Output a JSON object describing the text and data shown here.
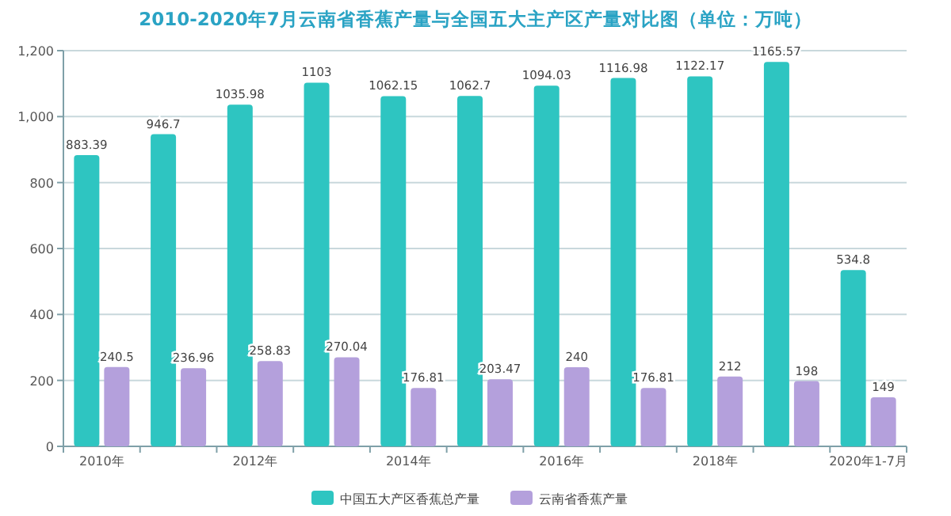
{
  "chart_data": {
    "type": "bar",
    "title": "2010-2020年7月云南省香蕉产量与全国五大主产区产量对比图（单位：万吨）",
    "categories": [
      "2010年",
      null,
      "2012年",
      null,
      "2014年",
      null,
      "2016年",
      null,
      "2018年",
      null,
      "2020年1-7月"
    ],
    "series": [
      {
        "name": "中国五大产区香蕉总产量",
        "color": "#2ec5c1",
        "values": [
          883.39,
          946.7,
          1035.98,
          1103,
          1062.15,
          1062.7,
          1094.03,
          1116.98,
          1122.17,
          1165.57,
          534.8
        ]
      },
      {
        "name": "云南省香蕉产量",
        "color": "#b4a0dc",
        "values": [
          240.5,
          236.96,
          258.83,
          270.04,
          176.81,
          203.47,
          240,
          176.81,
          212,
          198,
          149
        ]
      }
    ],
    "ylim": [
      0,
      1200
    ],
    "yticks": [
      0,
      200,
      400,
      600,
      800,
      {
        "value": 1000,
        "label": "1,000"
      },
      {
        "value": 1200,
        "label": "1,200"
      }
    ],
    "grid": "y",
    "legend": "bottom",
    "data_labels": true
  }
}
